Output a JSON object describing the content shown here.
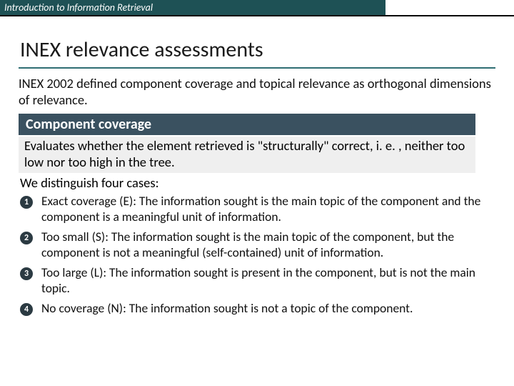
{
  "header": {
    "course_title": "Introduction to Information Retrieval"
  },
  "title": "INEX relevance assessments",
  "intro": "INEX 2002 defined component coverage and topical relevance as orthogonal dimensions of relevance.",
  "section": {
    "heading": "Component coverage",
    "eval": "Evaluates whether the element retrieved is \"structurally\" correct, i. e. , neither too low nor too high in the tree.",
    "cases_intro": "We distinguish four cases:",
    "cases": [
      {
        "num": "1",
        "text": "Exact coverage (E): The information sought is the main topic of the component and the component is a meaningful unit of information."
      },
      {
        "num": "2",
        "text": "Too small (S): The information sought is the main topic of the component, but the component is not a meaningful (self-contained) unit of information."
      },
      {
        "num": "3",
        "text": "Too large (L): The information sought is present in the component, but is not the main topic."
      },
      {
        "num": "4",
        "text": "No coverage (N): The information sought is not a topic of the component."
      }
    ]
  },
  "colors": {
    "header_bg": "#1e5155",
    "title_rule": "#2f6e73",
    "section_bg": "#3a5160",
    "eval_bg": "#efefef",
    "badge_bg": "#2b3a42"
  }
}
